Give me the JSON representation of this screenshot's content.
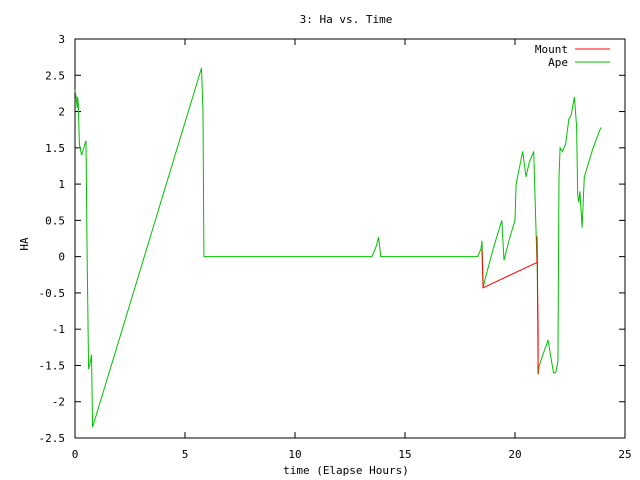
{
  "chart_data": {
    "type": "line",
    "title": "3: Ha vs. Time",
    "xlabel": "time (Elapse Hours)",
    "ylabel": "HA",
    "xlim": [
      0,
      25
    ],
    "ylim": [
      -2.5,
      3
    ],
    "xticks": [
      0,
      5,
      10,
      15,
      20,
      25
    ],
    "yticks": [
      -2.5,
      -2,
      -1.5,
      -1,
      -0.5,
      0,
      0.5,
      1,
      1.5,
      2,
      2.5,
      3
    ],
    "xtick_labels": [
      "0",
      "5",
      "10",
      "15",
      "20",
      "25"
    ],
    "ytick_labels": [
      "-2.5",
      "-2",
      "-1.5",
      "-1",
      "-0.5",
      "0",
      "0.5",
      "1",
      "1.5",
      "2",
      "2.5",
      "3"
    ],
    "legend_position": "top-right",
    "grid": false,
    "series": [
      {
        "name": "Mount",
        "color": "#ff0000",
        "points": [
          [
            18.5,
            0.1
          ],
          [
            18.55,
            -0.43
          ],
          [
            21.0,
            -0.08
          ],
          [
            21.0,
            0.28
          ],
          [
            21.05,
            -1.02
          ],
          [
            21.05,
            -1.62
          ]
        ]
      },
      {
        "name": "Ape",
        "color": "#00c000",
        "points": [
          [
            0.0,
            2.3
          ],
          [
            0.05,
            2.2
          ],
          [
            0.1,
            2.05
          ],
          [
            0.12,
            2.2
          ],
          [
            0.15,
            2.1
          ],
          [
            0.2,
            1.55
          ],
          [
            0.3,
            1.4
          ],
          [
            0.45,
            1.55
          ],
          [
            0.5,
            1.6
          ],
          [
            0.55,
            0.05
          ],
          [
            0.62,
            -1.55
          ],
          [
            0.7,
            -1.45
          ],
          [
            0.75,
            -1.35
          ],
          [
            0.8,
            -2.35
          ],
          [
            5.75,
            2.6
          ],
          [
            5.82,
            2.0
          ],
          [
            5.86,
            0.0
          ],
          [
            13.5,
            0.0
          ],
          [
            13.7,
            0.15
          ],
          [
            13.8,
            0.27
          ],
          [
            13.9,
            0.0
          ],
          [
            18.3,
            0.0
          ],
          [
            18.45,
            0.1
          ],
          [
            18.5,
            0.22
          ],
          [
            18.55,
            -0.43
          ],
          [
            18.65,
            -0.3
          ],
          [
            19.0,
            0.1
          ],
          [
            19.2,
            0.3
          ],
          [
            19.4,
            0.5
          ],
          [
            19.5,
            -0.05
          ],
          [
            19.75,
            0.25
          ],
          [
            20.0,
            0.5
          ],
          [
            20.05,
            1.0
          ],
          [
            20.15,
            1.15
          ],
          [
            20.25,
            1.3
          ],
          [
            20.35,
            1.45
          ],
          [
            20.5,
            1.1
          ],
          [
            20.65,
            1.3
          ],
          [
            20.85,
            1.45
          ],
          [
            21.0,
            -0.1
          ],
          [
            21.0,
            0.28
          ],
          [
            21.05,
            -1.62
          ],
          [
            21.1,
            -1.5
          ],
          [
            21.5,
            -1.15
          ],
          [
            21.75,
            -1.6
          ],
          [
            21.85,
            -1.6
          ],
          [
            21.95,
            -1.45
          ],
          [
            22.0,
            1.1
          ],
          [
            22.05,
            1.5
          ],
          [
            22.15,
            1.45
          ],
          [
            22.3,
            1.55
          ],
          [
            22.45,
            1.9
          ],
          [
            22.55,
            1.95
          ],
          [
            22.7,
            2.2
          ],
          [
            22.8,
            1.8
          ],
          [
            22.85,
            0.85
          ],
          [
            22.9,
            0.75
          ],
          [
            22.95,
            0.9
          ],
          [
            23.05,
            0.4
          ],
          [
            23.15,
            1.1
          ],
          [
            23.3,
            1.25
          ],
          [
            23.5,
            1.45
          ],
          [
            23.7,
            1.62
          ],
          [
            23.9,
            1.78
          ]
        ]
      }
    ]
  }
}
